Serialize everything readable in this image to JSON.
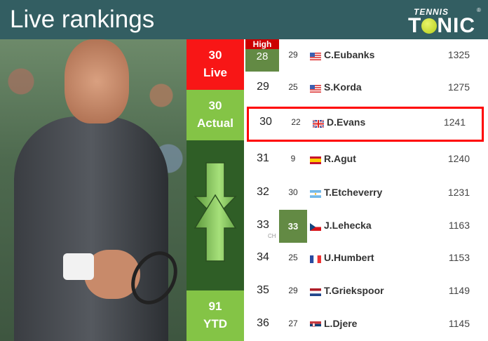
{
  "header": {
    "title": "Live rankings",
    "logo_top": "TENNIS",
    "logo_bottom": "TONIC"
  },
  "summary": {
    "live_rank": "30",
    "live_label": "Live",
    "actual_rank": "30",
    "actual_label": "Actual",
    "ytd_value": "91",
    "ytd_label": "YTD",
    "trend_icon": "up-down-arrows-icon"
  },
  "colors": {
    "header": "#335e62",
    "live": "#f81616",
    "actual": "#84c446",
    "trend_bg": "#2f5e26",
    "highlight_border": "#ff0000",
    "career_high_box": "#638a44"
  },
  "high_label": "High",
  "ch_label": "CH",
  "rows": [
    {
      "rank": "28",
      "prev": "29",
      "country": "USA",
      "name": "C.Eubanks",
      "points": "1325"
    },
    {
      "rank": "29",
      "prev": "25",
      "country": "USA",
      "name": "S.Korda",
      "points": "1275"
    },
    {
      "rank": "30",
      "prev": "22",
      "country": "GBR",
      "name": "D.Evans",
      "points": "1241"
    },
    {
      "rank": "31",
      "prev": "9",
      "country": "ESP",
      "name": "R.Agut",
      "points": "1240"
    },
    {
      "rank": "32",
      "prev": "30",
      "country": "ARG",
      "name": "T.Etcheverry",
      "points": "1231"
    },
    {
      "rank": "33",
      "prev": "33",
      "country": "CZE",
      "name": "J.Lehecka",
      "points": "1163"
    },
    {
      "rank": "34",
      "prev": "25",
      "country": "FRA",
      "name": "U.Humbert",
      "points": "1153"
    },
    {
      "rank": "35",
      "prev": "29",
      "country": "NED",
      "name": "T.Griekspoor",
      "points": "1149"
    },
    {
      "rank": "36",
      "prev": "27",
      "country": "SRB",
      "name": "L.Djere",
      "points": "1145"
    }
  ]
}
